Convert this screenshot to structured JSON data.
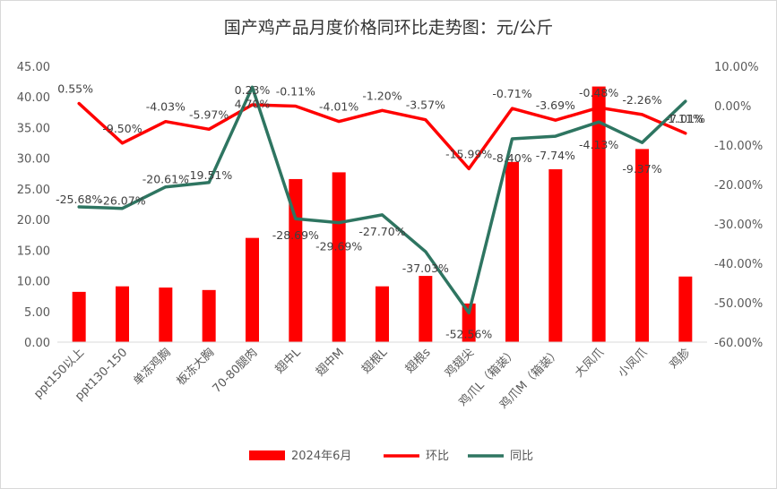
{
  "chart_data": {
    "type": "bar",
    "title": "国产鸡产品月度价格同环比走势图：元/公斤",
    "categories": [
      "ppt150以上",
      "ppt130-150",
      "单冻鸡胸",
      "板冻大胸",
      "70-80腿肉",
      "翅中L",
      "翅中M",
      "翅根L",
      "翅根s",
      "鸡翅尖",
      "鸡爪L（箱装）",
      "鸡爪M（箱装）",
      "大凤爪",
      "小凤爪",
      "鸡胗"
    ],
    "series": [
      {
        "name": "2024年6月",
        "axis": "left",
        "kind": "bar",
        "color": "#ff0000",
        "values": [
          8.2,
          9.1,
          8.9,
          8.5,
          17.0,
          26.6,
          27.7,
          9.1,
          10.8,
          6.3,
          29.4,
          28.2,
          41.7,
          31.5,
          10.7
        ]
      },
      {
        "name": "环比",
        "axis": "right",
        "kind": "line",
        "color": "#ff0000",
        "values": [
          0.55,
          -9.5,
          -4.03,
          -5.97,
          0.23,
          -0.11,
          -4.01,
          -1.2,
          -3.57,
          -15.99,
          -0.71,
          -3.69,
          -0.48,
          -2.26,
          -7.01
        ],
        "labels": [
          "0.55%",
          "-9.50%",
          "-4.03%",
          "-5.97%",
          "0.23%",
          "-0.11%",
          "-4.01%",
          "-1.20%",
          "-3.57%",
          "-15.99%",
          "-0.71%",
          "-3.69%",
          "-0.48%",
          "-2.26%",
          "-7.01%"
        ]
      },
      {
        "name": "同比",
        "axis": "right",
        "kind": "line",
        "color": "#2e7561",
        "values": [
          -25.68,
          -26.07,
          -20.61,
          -19.51,
          4.7,
          -28.69,
          -29.69,
          -27.7,
          -37.03,
          -52.56,
          -8.4,
          -7.74,
          -4.13,
          -9.37,
          1.11
        ],
        "labels": [
          "-25.68%",
          "-26.07%",
          "-20.61%",
          "-19.51%",
          "4.70%",
          "-28.69%",
          "-29.69%",
          "-27.70%",
          "-37.03%",
          "-52.56%",
          "-8.40%",
          "-7.74%",
          "-4.13%",
          "-9.37%",
          "1.11%"
        ]
      }
    ],
    "y_left": {
      "min": 0,
      "max": 45,
      "step": 5,
      "tick_labels": [
        "0.00",
        "5.00",
        "10.00",
        "15.00",
        "20.00",
        "25.00",
        "30.00",
        "35.00",
        "40.00",
        "45.00"
      ]
    },
    "y_right": {
      "min": -60,
      "max": 10,
      "step": 10,
      "tick_labels": [
        "-60.00%",
        "-50.00%",
        "-40.00%",
        "-30.00%",
        "-20.00%",
        "-10.00%",
        "0.00%",
        "10.00%"
      ]
    },
    "grid": false,
    "legend": "bottom",
    "legend_entries": [
      "2024年6月",
      "环比",
      "同比"
    ]
  }
}
